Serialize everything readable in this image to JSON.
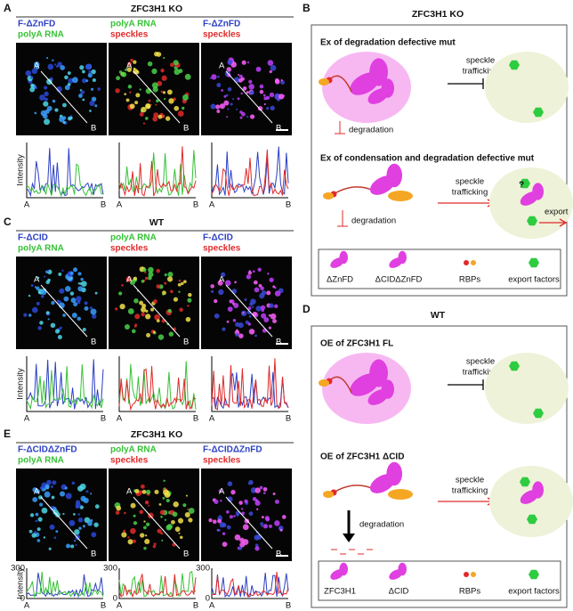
{
  "panels": [
    {
      "label": "A",
      "title": "ZFC3H1 KO",
      "images": [
        {
          "lines": [
            "F-ΔZnFD",
            "polyA RNA"
          ]
        },
        {
          "lines": [
            "polyA RNA",
            "speckles"
          ]
        },
        {
          "lines": [
            "F-ΔZnFD",
            "speckles"
          ]
        }
      ],
      "markers": [
        "A",
        "B"
      ],
      "plot": {
        "y_label": "Intensity",
        "x_labels": [
          "A",
          "B"
        ]
      }
    },
    {
      "label": "C",
      "title": "WT",
      "images": [
        {
          "lines": [
            "F-ΔCID",
            "polyA RNA"
          ]
        },
        {
          "lines": [
            "polyA RNA",
            "speckles"
          ]
        },
        {
          "lines": [
            "F-ΔCID",
            "speckles"
          ]
        }
      ],
      "markers": [
        "A",
        "B"
      ],
      "plot": {
        "y_label": "Intensity",
        "x_labels": [
          "A",
          "B"
        ]
      }
    },
    {
      "label": "E",
      "title": "ZFC3H1 KO",
      "images": [
        {
          "lines": [
            "F-ΔCIDΔZnFD",
            "polyA RNA"
          ]
        },
        {
          "lines": [
            "polyA RNA",
            "speckles"
          ]
        },
        {
          "lines": [
            "F-ΔCIDΔZnFD",
            "speckles"
          ]
        }
      ],
      "markers": [
        "A",
        "B"
      ],
      "plot": {
        "y_label": "Intensity",
        "x_labels": [
          "A",
          "B"
        ],
        "yticks": [
          300,
          0
        ]
      }
    }
  ],
  "schematics": [
    {
      "label": "B",
      "title": "ZFC3H1 KO",
      "sections": [
        {
          "heading": "Ex of degradation defective mut",
          "arrow_label": [
            "speckle",
            "trafficking"
          ],
          "degradation": "degradation"
        },
        {
          "heading": "Ex of condensation and degradation defective mut",
          "arrow_label": [
            "speckle",
            "trafficking"
          ],
          "degradation": "degradation",
          "question": "?",
          "export": "export"
        }
      ],
      "legend": [
        "ΔZnFD",
        "ΔCIDΔZnFD",
        "RBPs",
        "export factors"
      ]
    },
    {
      "label": "D",
      "title": "WT",
      "sections": [
        {
          "heading": "OE of ZFC3H1 FL",
          "arrow_label": [
            "speckle",
            "trafficking"
          ]
        },
        {
          "heading": "OE of ZFC3H1 ΔCID",
          "arrow_label": [
            "speckle",
            "trafficking"
          ],
          "degradation": "degradation"
        }
      ],
      "legend": [
        "ZFC3H1",
        "ΔCID",
        "RBPs",
        "export factors"
      ]
    }
  ]
}
